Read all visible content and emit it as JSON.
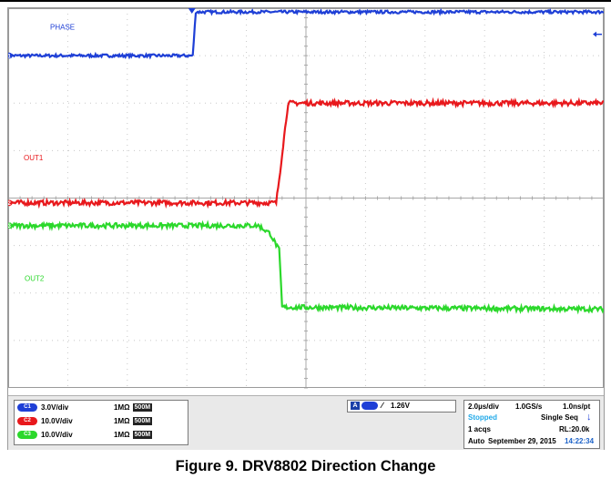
{
  "figure": {
    "caption": "Figure 9. DRV8802 Direction Change"
  },
  "colors": {
    "ch1": "#1e3fd6",
    "ch2": "#e8181c",
    "ch3": "#2bd82b",
    "grid": "#c8c8c8",
    "stopped": "#21a9e8",
    "time": "#1e63c8"
  },
  "chart_data": {
    "type": "line",
    "title": "",
    "xlabel": "",
    "ylabel": "",
    "x_unit": "µs",
    "y_unit": "div",
    "xlim": [
      -10,
      10
    ],
    "ylim": [
      -4,
      4
    ],
    "grid": true,
    "series": [
      {
        "name": "PHASE",
        "channel": "1",
        "color": "#1e3fd6",
        "x": [
          -10,
          -3.8,
          -3.7,
          10
        ],
        "y": [
          3.0,
          3.0,
          3.92,
          3.92
        ]
      },
      {
        "name": "OUT1",
        "channel": "2",
        "color": "#e8181c",
        "x": [
          -10,
          -1.0,
          -0.9,
          -0.6,
          10
        ],
        "y": [
          -0.1,
          -0.1,
          0.4,
          2.0,
          2.0
        ]
      },
      {
        "name": "OUT2",
        "channel": "3",
        "color": "#2bd82b",
        "x": [
          -10,
          -1.6,
          -1.2,
          -0.9,
          -0.8,
          10
        ],
        "y": [
          -0.58,
          -0.58,
          -0.75,
          -1.1,
          -2.3,
          -2.34
        ]
      }
    ],
    "annotations": [
      "PHASE",
      "OUT1",
      "OUT2"
    ]
  },
  "scope": {
    "channels": [
      {
        "id": "C1",
        "scale": "3.0V/div",
        "impedance": "1MΩ",
        "bandwidth": "500M"
      },
      {
        "id": "C2",
        "scale": "10.0V/div",
        "impedance": "1MΩ",
        "bandwidth": "500M"
      },
      {
        "id": "C3",
        "scale": "10.0V/div",
        "impedance": "1MΩ",
        "bandwidth": "500M"
      }
    ],
    "trigger": {
      "mode": "A",
      "source": "C1",
      "level": "1.26V"
    },
    "timebase": {
      "time_div": "2.0µs/div",
      "sample_rate": "1.0GS/s",
      "resolution": "1.0ns/pt",
      "status": "Stopped",
      "acq_mode": "Single Seq",
      "acqs": "1 acqs",
      "record_length": "RL:20.0k",
      "auto": "Auto",
      "date": "September 29, 2015",
      "time": "14:22:34"
    }
  }
}
